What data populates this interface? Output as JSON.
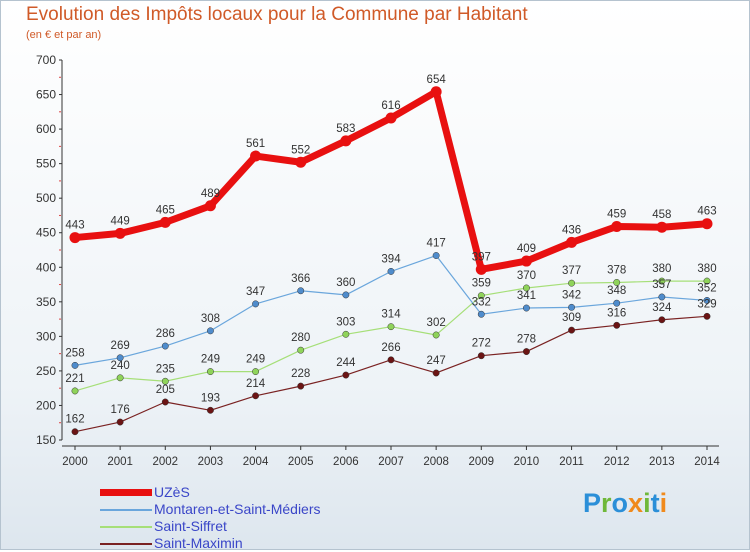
{
  "header": {
    "title": "Evolution des Impôts locaux pour la Commune par Habitant",
    "subtitle": "(en € et par an)"
  },
  "logo": {
    "text": "Proxiti"
  },
  "colors": {
    "title": "#d05a28",
    "axis_text": "#333333",
    "legend_text": "#3a46c8"
  },
  "chart_data": {
    "type": "line",
    "title": "Evolution des Impôts locaux pour la Commune par Habitant",
    "subtitle": "(en € et par an)",
    "xlabel": "",
    "ylabel": "",
    "x": [
      2000,
      2001,
      2002,
      2003,
      2004,
      2005,
      2006,
      2007,
      2008,
      2009,
      2010,
      2011,
      2012,
      2013,
      2014
    ],
    "ylim": [
      150,
      700
    ],
    "yticks": [
      150,
      200,
      250,
      300,
      350,
      400,
      450,
      500,
      550,
      600,
      650,
      700
    ],
    "grid": false,
    "legend_position": "bottom-left",
    "series": [
      {
        "name": "UZèS",
        "color": "#e81010",
        "marker_fill": "#e81010",
        "width": 7,
        "values": [
          443,
          449,
          465,
          489,
          561,
          552,
          583,
          616,
          654,
          397,
          409,
          436,
          459,
          458,
          463
        ]
      },
      {
        "name": "Montaren-et-Saint-Médiers",
        "color": "#6aa6dc",
        "marker_fill": "#4f8ccc",
        "width": 1.2,
        "values": [
          258,
          269,
          286,
          308,
          347,
          366,
          360,
          394,
          417,
          332,
          341,
          342,
          348,
          357,
          352
        ]
      },
      {
        "name": "Saint-Siffret",
        "color": "#a6df78",
        "marker_fill": "#8fd35a",
        "width": 1.2,
        "values": [
          221,
          240,
          235,
          249,
          249,
          280,
          303,
          314,
          302,
          359,
          370,
          377,
          378,
          380,
          380
        ]
      },
      {
        "name": "Saint-Maximin",
        "color": "#7a2222",
        "marker_fill": "#6b1414",
        "width": 1.2,
        "values": [
          162,
          176,
          205,
          193,
          214,
          228,
          244,
          266,
          247,
          272,
          278,
          309,
          316,
          324,
          329
        ]
      }
    ]
  }
}
